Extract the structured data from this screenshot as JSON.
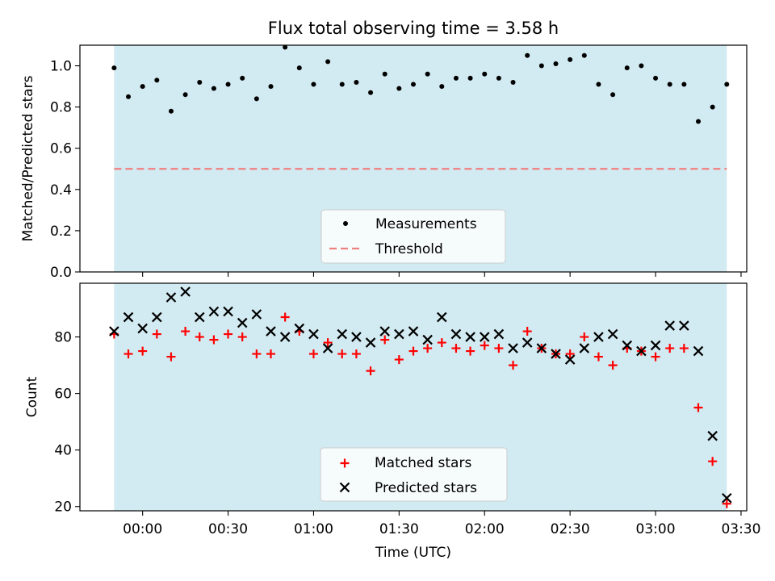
{
  "chart_data": {
    "title": "Flux total observing time = 3.58 h",
    "colors": {
      "span": "#add8e6",
      "measurement": "#000000",
      "threshold": "#f08080",
      "matched": "#ff0000",
      "predicted": "#000000"
    },
    "x": {
      "label": "Time (UTC)",
      "range_min": [
        -22,
        212
      ],
      "span_min": [
        -10,
        205
      ],
      "ticks": [
        {
          "label": "00:00",
          "min": 0
        },
        {
          "label": "00:30",
          "min": 30
        },
        {
          "label": "01:00",
          "min": 60
        },
        {
          "label": "01:30",
          "min": 90
        },
        {
          "label": "02:00",
          "min": 120
        },
        {
          "label": "02:30",
          "min": 150
        },
        {
          "label": "03:00",
          "min": 180
        },
        {
          "label": "03:30",
          "min": 210
        }
      ]
    },
    "times_min": [
      -10,
      -5,
      0,
      5,
      10,
      15,
      20,
      25,
      30,
      35,
      40,
      45,
      50,
      55,
      60,
      65,
      70,
      75,
      80,
      85,
      90,
      95,
      100,
      105,
      110,
      115,
      120,
      125,
      130,
      135,
      140,
      145,
      150,
      155,
      160,
      165,
      170,
      175,
      180,
      185,
      190,
      195,
      200,
      205
    ],
    "panels": [
      {
        "type": "scatter",
        "ylabel": "Matched/Predicted stars",
        "ylim": [
          0,
          1.1
        ],
        "yticks": [
          "0.0",
          "0.2",
          "0.4",
          "0.6",
          "0.8",
          "1.0"
        ],
        "series": [
          {
            "name": "Measurements",
            "marker": "dot",
            "values": [
              0.99,
              0.85,
              0.9,
              0.93,
              0.78,
              0.86,
              0.92,
              0.89,
              0.91,
              0.94,
              0.84,
              0.9,
              1.09,
              0.99,
              0.91,
              1.02,
              0.91,
              0.92,
              0.87,
              0.96,
              0.89,
              0.91,
              0.96,
              0.9,
              0.94,
              0.94,
              0.96,
              0.94,
              0.92,
              1.05,
              1.0,
              1.01,
              1.03,
              1.05,
              0.91,
              0.86,
              0.99,
              1.0,
              0.94,
              0.91,
              0.91,
              0.73,
              0.8,
              0.91
            ]
          }
        ],
        "threshold": {
          "name": "Threshold",
          "value": 0.5
        }
      },
      {
        "type": "scatter",
        "ylabel": "Count",
        "ylim": [
          18.5,
          99
        ],
        "yticks": [
          "20",
          "40",
          "60",
          "80"
        ],
        "series": [
          {
            "name": "Matched stars",
            "marker": "plus",
            "values": [
              81,
              74,
              75,
              81,
              73,
              82,
              80,
              79,
              81,
              80,
              74,
              74,
              87,
              82,
              74,
              78,
              74,
              74,
              68,
              79,
              72,
              75,
              76,
              78,
              76,
              75,
              77,
              76,
              70,
              82,
              76,
              74,
              74,
              80,
              73,
              70,
              76,
              75,
              73,
              76,
              76,
              55,
              36,
              21
            ]
          },
          {
            "name": "Predicted stars",
            "marker": "x",
            "values": [
              82,
              87,
              83,
              87,
              94,
              96,
              87,
              89,
              89,
              85,
              88,
              82,
              80,
              83,
              81,
              76,
              81,
              80,
              78,
              82,
              81,
              82,
              79,
              87,
              81,
              80,
              80,
              81,
              76,
              78,
              76,
              74,
              72,
              76,
              80,
              81,
              77,
              75,
              77,
              84,
              84,
              75,
              45,
              23
            ]
          }
        ]
      }
    ]
  }
}
